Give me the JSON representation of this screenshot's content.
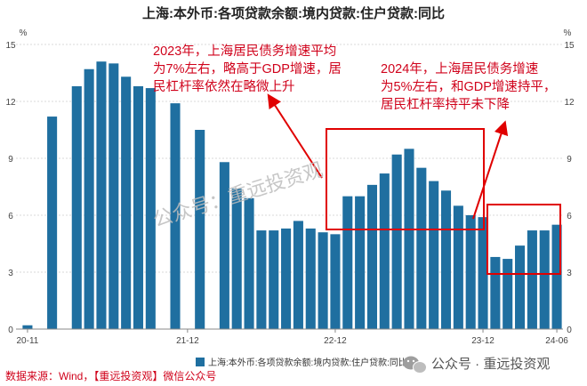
{
  "chart_data": {
    "type": "bar",
    "title": "上海:本外币:各项贷款余额:境内贷款:住户贷款:同比",
    "ylabel_left": "%",
    "ylabel_right": "%",
    "ylim": [
      0,
      15
    ],
    "yticks": [
      0,
      3,
      6,
      9,
      12,
      15
    ],
    "grid": true,
    "legend_position": "bottom-center",
    "xtick_labels": [
      {
        "label": "20-11",
        "index": 0
      },
      {
        "label": "21-12",
        "index": 13
      },
      {
        "label": "22-12",
        "index": 25
      },
      {
        "label": "23-12",
        "index": 37
      },
      {
        "label": "24-06",
        "index": 43
      }
    ],
    "series": [
      {
        "name": "上海:本外币:各项贷款余额:境内贷款:住户贷款:同比",
        "color": "#1f6fa0",
        "values": [
          0.2,
          null,
          11.2,
          null,
          12.8,
          13.7,
          14.1,
          14.0,
          13.3,
          12.8,
          12.7,
          null,
          11.9,
          null,
          10.5,
          null,
          8.8,
          7.4,
          6.9,
          5.2,
          5.2,
          5.3,
          5.7,
          5.3,
          5.1,
          5.0,
          7.0,
          7.0,
          7.6,
          8.2,
          9.2,
          9.5,
          8.5,
          7.8,
          7.3,
          6.5,
          6.0,
          5.9,
          3.8,
          3.7,
          4.4,
          5.2,
          5.2,
          5.5
        ]
      }
    ],
    "annotations": [
      {
        "line1": "2023年，上海居民债务增速平均",
        "line2": "为7%左右，略高于GDP增速，居",
        "line3": "民杠杆率依然在略微上升"
      },
      {
        "line1": "2024年，上海居民债务增速",
        "line2": "为5%左右，和GDP增速持平，",
        "line3": "居民杠杆率持平未下降"
      }
    ]
  },
  "watermark": "公众号：重远投资观",
  "source_text": "数据来源：Wind，【重远投资观】微信公众号",
  "wechat_badge": "公众号 · 重远投资观",
  "colors": {
    "bar": "#1f6fa0",
    "highlight": "#e00000",
    "annotation": "#d0021b"
  }
}
